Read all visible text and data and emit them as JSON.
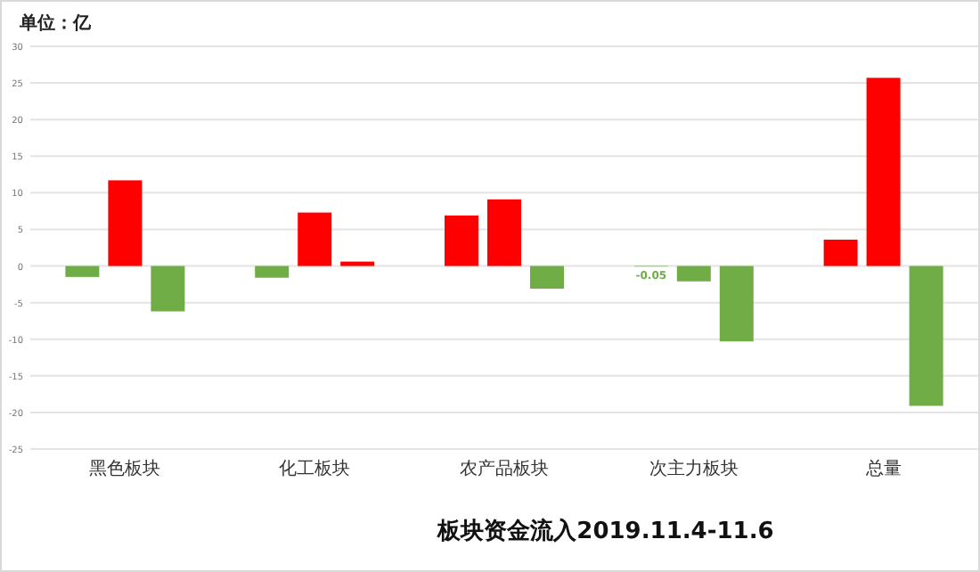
{
  "chart_data": {
    "type": "bar",
    "title": "板块资金流入2019.11.4-11.6",
    "ylabel": "单位：亿",
    "categories": [
      "黑色板块",
      "化工板块",
      "农产品板块",
      "次主力板块",
      "总量"
    ],
    "series": [
      {
        "values": [
          -1.5,
          -1.6,
          6.9,
          -0.05,
          3.6
        ],
        "colors": [
          "#70ad47",
          "#70ad47",
          "#ff0000",
          "#70ad47",
          "#ff0000"
        ],
        "value_labels": [
          null,
          null,
          null,
          "-0.05",
          null
        ]
      },
      {
        "values": [
          11.7,
          7.3,
          9.1,
          -2.1,
          25.7
        ],
        "colors": [
          "#ff0000",
          "#ff0000",
          "#ff0000",
          "#70ad47",
          "#ff0000"
        ]
      },
      {
        "values": [
          -6.2,
          0.6,
          -3.1,
          -10.3,
          -19.1
        ],
        "colors": [
          "#70ad47",
          "#ff0000",
          "#70ad47",
          "#70ad47",
          "#70ad47"
        ]
      }
    ],
    "ylim": [
      -25,
      30
    ],
    "yticks": [
      30,
      25,
      20,
      15,
      10,
      5,
      0,
      -5,
      -10,
      -15,
      -20,
      -25
    ],
    "grid": "y"
  }
}
